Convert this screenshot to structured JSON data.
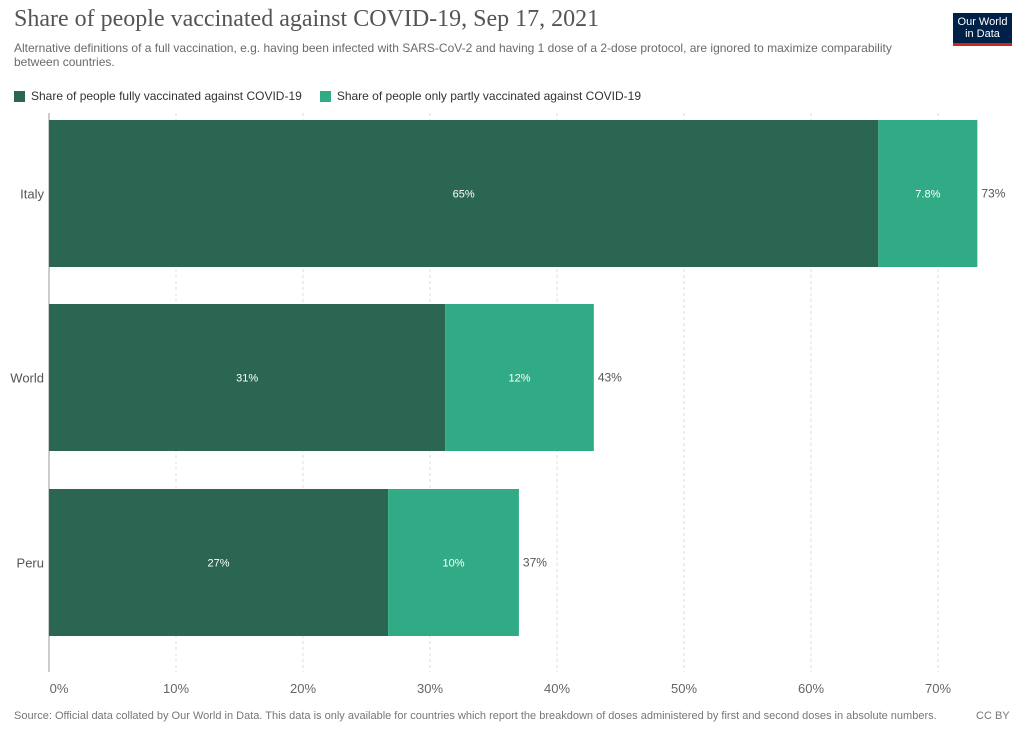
{
  "header": {
    "title": "Share of people vaccinated against COVID-19, Sep 17, 2021",
    "subtitle": "Alternative definitions of a full vaccination, e.g. having been infected with SARS-CoV-2 and having 1 dose of a 2-dose protocol, are ignored to maximize comparability between countries.",
    "logo_line1": "Our World",
    "logo_line2": "in Data"
  },
  "footer": {
    "source": "Source: Official data collated by Our World in Data. This data is only available for countries which report the breakdown of doses administered by first and second doses in absolute numbers.",
    "license": "CC BY"
  },
  "chart_data": {
    "type": "bar",
    "orientation": "horizontal",
    "stacked": true,
    "title": "Share of people vaccinated against COVID-19, Sep 17, 2021",
    "categories": [
      "Italy",
      "World",
      "Peru"
    ],
    "series": [
      {
        "name": "Share of people fully vaccinated against COVID-19",
        "color": "#2a6651",
        "values": [
          65.3,
          31.2,
          26.7
        ],
        "labels": [
          "65%",
          "31%",
          "27%"
        ]
      },
      {
        "name": "Share of people only partly vaccinated against COVID-19",
        "color": "#31ab85",
        "values": [
          7.8,
          11.7,
          10.3
        ],
        "labels": [
          "7.8%",
          "12%",
          "10%"
        ]
      }
    ],
    "totals": [
      "73%",
      "43%",
      "37%"
    ],
    "xlim": [
      0,
      75
    ],
    "xticks": [
      0,
      10,
      20,
      30,
      40,
      50,
      60,
      70
    ],
    "xtick_labels": [
      "0%",
      "10%",
      "20%",
      "30%",
      "40%",
      "50%",
      "60%",
      "70%"
    ],
    "grid": true,
    "legend_position": "top-left"
  }
}
